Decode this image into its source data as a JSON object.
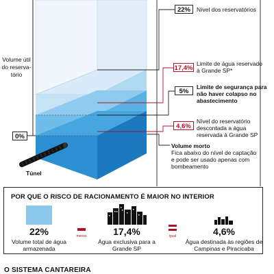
{
  "reservoir": {
    "volume_label": "Volume útil do reserva-tório",
    "tunnel_label": "Túnel",
    "zero_badge": "0%",
    "levels": [
      {
        "value": "22%",
        "text": "Nível dos reservatórios",
        "style": "dark"
      },
      {
        "value": "17,4%",
        "text": "Limite de água reservado à Grande SP*",
        "style": "red"
      },
      {
        "value": "5%",
        "text": "Limite de segurança para não haver colapso no abastecimento",
        "style": "dark"
      },
      {
        "value": "4,6%",
        "text": "Nível do reservatório descontada a água reservada à Grande SP",
        "style": "red"
      }
    ],
    "dead_volume": {
      "title": "Volume morto",
      "text": "Fica abaixo do nível de captação e pode ser usado apenas com bombeamento"
    }
  },
  "panel": {
    "title": "POR QUE O RISCO DE RACIONAMENTO É MAIOR NO INTERIOR",
    "items": [
      {
        "value": "22%",
        "caption": "Volume total de água armazenada",
        "icon": "water-square-icon"
      },
      {
        "value": "17,4%",
        "caption": "Água exclusiva para a Grande SP",
        "icon": "big-city-skyline-icon"
      },
      {
        "value": "4,6%",
        "caption": "Água destinada às regiões de Campinas e Piracicaba",
        "icon": "small-city-skyline-icon"
      }
    ],
    "operators": [
      {
        "symbol": "—",
        "word": "menos"
      },
      {
        "symbol": "=",
        "word": "igual"
      }
    ]
  },
  "footer": {
    "text": "O SISTEMA CANTAREIRA"
  },
  "colors": {
    "accent_red": "#b0122a",
    "water_light": "#aed8f0",
    "water_mid": "#5eb7e8",
    "water_deep": "#1e86cc",
    "glass": "#e6f1fa"
  }
}
